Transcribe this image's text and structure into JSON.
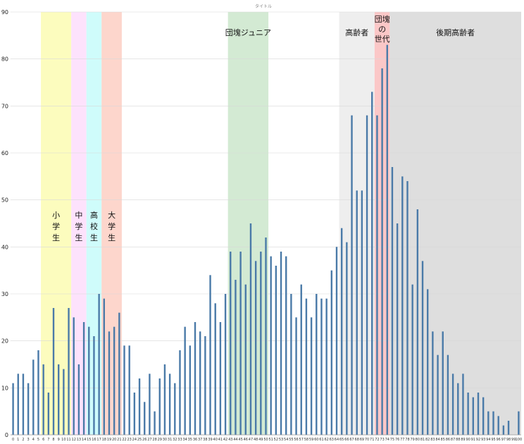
{
  "chart_data": {
    "type": "bar",
    "title": "タイトル",
    "xlabel": "",
    "ylabel": "",
    "ylim": [
      0,
      90
    ],
    "yticks": [
      0,
      10,
      20,
      30,
      40,
      50,
      60,
      70,
      80,
      90
    ],
    "grid": true,
    "legend": "none",
    "bar_color": "#4a7aa8",
    "categories": [
      "0",
      "1",
      "2",
      "3",
      "4",
      "5",
      "6",
      "7",
      "8",
      "9",
      "10",
      "11",
      "12",
      "13",
      "14",
      "15",
      "16",
      "17",
      "18",
      "19",
      "20",
      "21",
      "22",
      "23",
      "24",
      "25",
      "26",
      "27",
      "28",
      "29",
      "30",
      "31",
      "32",
      "33",
      "34",
      "35",
      "36",
      "37",
      "38",
      "39",
      "40",
      "41",
      "42",
      "43",
      "44",
      "45",
      "46",
      "47",
      "48",
      "49",
      "50",
      "51",
      "52",
      "53",
      "54",
      "55",
      "56",
      "57",
      "58",
      "59",
      "60",
      "61",
      "62",
      "63",
      "64",
      "65",
      "66",
      "67",
      "68",
      "69",
      "70",
      "71",
      "72",
      "73",
      "74",
      "75",
      "76",
      "77",
      "78",
      "79",
      "80",
      "81",
      "82",
      "83",
      "84",
      "85",
      "86",
      "87",
      "88",
      "89",
      "90",
      "91",
      "92",
      "93",
      "94",
      "95",
      "96",
      "97",
      "98",
      "99",
      "100"
    ],
    "values": [
      11,
      13,
      13,
      11,
      16,
      18,
      15,
      9,
      27,
      15,
      14,
      27,
      25,
      15,
      24,
      23,
      21,
      30,
      29,
      22,
      23,
      26,
      19,
      19,
      9,
      12,
      7,
      13,
      5,
      12,
      15,
      13,
      11,
      18,
      23,
      19,
      24,
      22,
      21,
      34,
      28,
      24,
      30,
      39,
      33,
      39,
      32,
      45,
      37,
      39,
      42,
      38,
      36,
      39,
      38,
      30,
      25,
      32,
      29,
      25,
      30,
      29,
      29,
      35,
      40,
      44,
      41,
      68,
      52,
      52,
      68,
      73,
      68,
      78,
      83,
      57,
      45,
      55,
      54,
      32,
      48,
      37,
      31,
      22,
      17,
      22,
      17,
      13,
      11,
      13,
      9,
      8,
      9,
      8,
      5,
      5,
      4,
      2,
      3,
      0,
      5
    ],
    "bands": [
      {
        "label": "小学生",
        "from": 6,
        "to": 11,
        "color": "#fcfcbe",
        "vertical": true
      },
      {
        "label": "中学生",
        "from": 12,
        "to": 14,
        "color": "#fde2fc",
        "vertical": true
      },
      {
        "label": "高校生",
        "from": 15,
        "to": 17,
        "color": "#cffcfb",
        "vertical": true
      },
      {
        "label": "大学生",
        "from": 18,
        "to": 21,
        "color": "#fdd6cc",
        "vertical": true
      },
      {
        "label": "団塊ジュニア",
        "from": 43,
        "to": 50,
        "color": "#d3ead3",
        "vertical": false
      },
      {
        "label": "高齢者",
        "from": 65,
        "to": 71,
        "color": "#eeeeee",
        "vertical": false
      },
      {
        "label": "団塊の世代",
        "from": 72,
        "to": 74,
        "color": "#fbc7c7",
        "vertical": false,
        "lines": [
          "団塊",
          "の",
          "世代"
        ]
      },
      {
        "label": "後期高齢者",
        "from": 75,
        "to": 100,
        "color": "#dedede",
        "vertical": false
      }
    ]
  }
}
